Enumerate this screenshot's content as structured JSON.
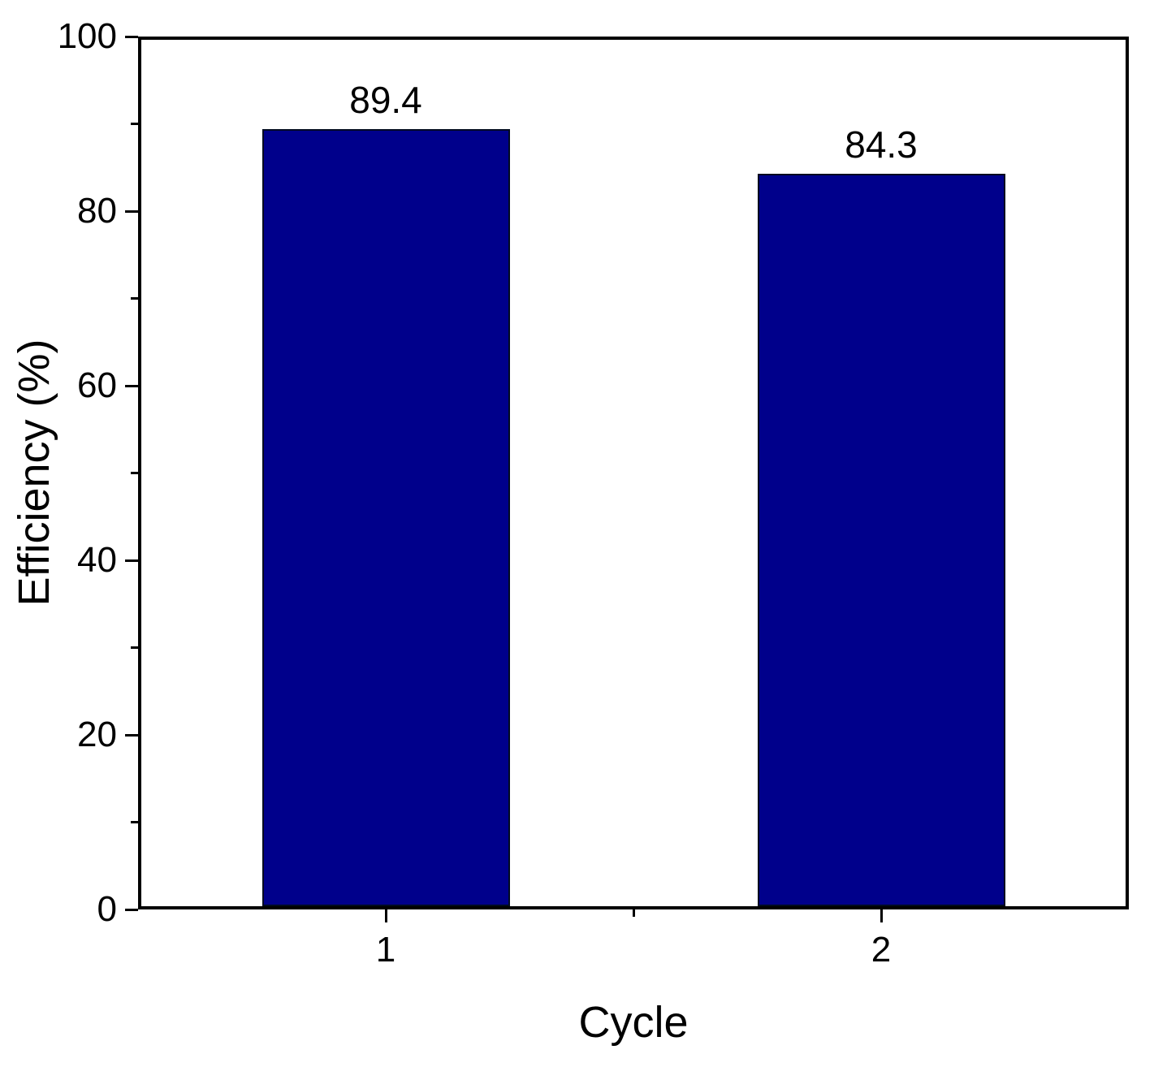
{
  "chart_data": {
    "type": "bar",
    "title": "",
    "categories": [
      "1",
      "2"
    ],
    "values": [
      89.4,
      84.3
    ],
    "value_labels": [
      "89.4",
      "84.3"
    ],
    "xlabel": "Cycle",
    "ylabel": "Efficiency (%)",
    "ylim": [
      0,
      100
    ],
    "yticks": [
      0,
      20,
      40,
      60,
      80,
      100
    ],
    "y_minor_ticks": [
      10,
      30,
      50,
      70,
      90
    ],
    "bar_color": "#00008b",
    "bar_outline_color": "#000a20",
    "axis_color": "#000000",
    "grid": false,
    "legend": "none"
  }
}
